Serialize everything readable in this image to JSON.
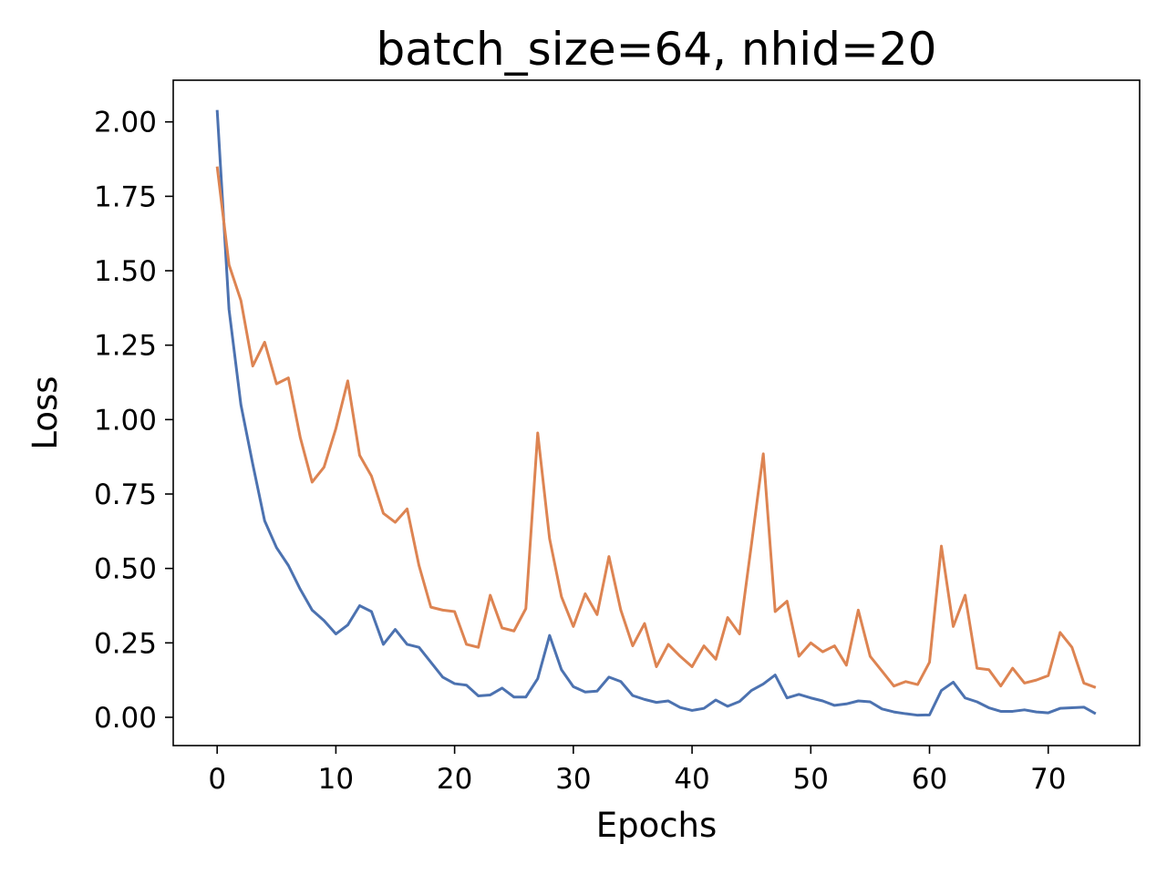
{
  "chart_data": {
    "type": "line",
    "title": "batch_size=64, nhid=20",
    "xlabel": "Epochs",
    "ylabel": "Loss",
    "xlim": [
      -3.7,
      77.7
    ],
    "ylim": [
      -0.095,
      2.14
    ],
    "xticks": [
      0,
      10,
      20,
      30,
      40,
      50,
      60,
      70
    ],
    "yticks": [
      0.0,
      0.25,
      0.5,
      0.75,
      1.0,
      1.25,
      1.5,
      1.75,
      2.0
    ],
    "ytick_labels": [
      "0.00",
      "0.25",
      "0.50",
      "0.75",
      "1.00",
      "1.25",
      "1.50",
      "1.75",
      "2.00"
    ],
    "grid": false,
    "legend": false,
    "series": [
      {
        "color": "#4c72b0",
        "x_start": 0,
        "values": [
          2.04,
          1.37,
          1.05,
          0.85,
          0.66,
          0.57,
          0.51,
          0.43,
          0.36,
          0.325,
          0.28,
          0.31,
          0.375,
          0.355,
          0.245,
          0.295,
          0.245,
          0.235,
          0.185,
          0.135,
          0.113,
          0.108,
          0.072,
          0.075,
          0.098,
          0.068,
          0.068,
          0.13,
          0.275,
          0.16,
          0.103,
          0.085,
          0.088,
          0.135,
          0.12,
          0.073,
          0.06,
          0.05,
          0.055,
          0.033,
          0.023,
          0.03,
          0.058,
          0.037,
          0.053,
          0.09,
          0.112,
          0.142,
          0.065,
          0.077,
          0.065,
          0.055,
          0.04,
          0.045,
          0.055,
          0.052,
          0.028,
          0.018,
          0.012,
          0.007,
          0.008,
          0.09,
          0.118,
          0.065,
          0.052,
          0.032,
          0.02,
          0.02,
          0.025,
          0.018,
          0.015,
          0.03,
          0.032,
          0.034,
          0.012
        ]
      },
      {
        "color": "#dd8452",
        "x_start": 0,
        "values": [
          1.85,
          1.52,
          1.4,
          1.18,
          1.26,
          1.12,
          1.14,
          0.94,
          0.79,
          0.84,
          0.97,
          1.13,
          0.88,
          0.81,
          0.685,
          0.655,
          0.7,
          0.51,
          0.37,
          0.36,
          0.355,
          0.245,
          0.235,
          0.41,
          0.3,
          0.29,
          0.365,
          0.955,
          0.6,
          0.405,
          0.305,
          0.415,
          0.345,
          0.54,
          0.36,
          0.24,
          0.315,
          0.17,
          0.245,
          0.205,
          0.17,
          0.24,
          0.195,
          0.335,
          0.28,
          0.58,
          0.885,
          0.355,
          0.39,
          0.205,
          0.25,
          0.22,
          0.24,
          0.175,
          0.36,
          0.205,
          0.155,
          0.105,
          0.12,
          0.11,
          0.185,
          0.575,
          0.305,
          0.41,
          0.165,
          0.16,
          0.105,
          0.165,
          0.115,
          0.125,
          0.14,
          0.285,
          0.235,
          0.115,
          0.1
        ]
      }
    ]
  }
}
